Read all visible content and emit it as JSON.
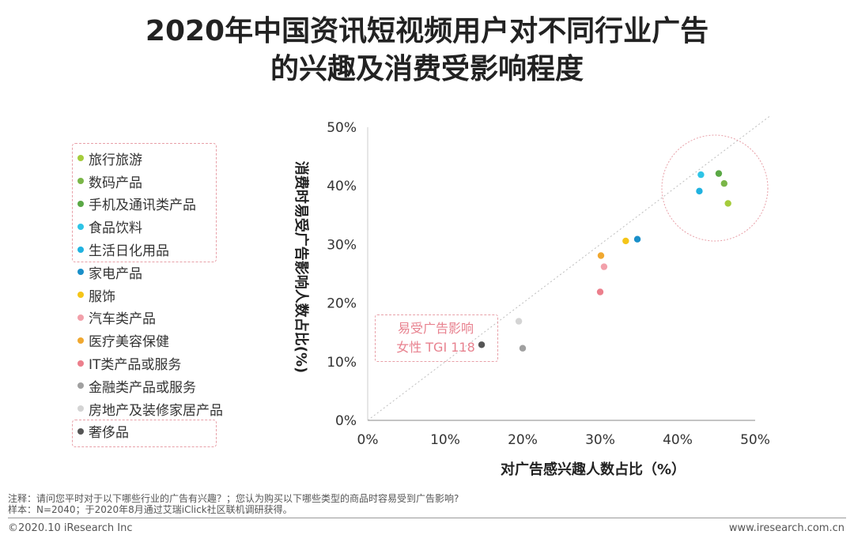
{
  "title": {
    "line1": "2020年中国资讯短视频用户对不同行业广告",
    "line2": "的兴趣及消费受影响程度"
  },
  "annotation": {
    "line1": "易受广告影响",
    "line2": "女性 TGI 118"
  },
  "notes": {
    "line1": "注释：请问您平时对于以下哪些行业的广告有兴趣？；您认为购买以下哪些类型的商品时容易受到广告影响?",
    "line2": "样本：N=2040；于2020年8月通过艾瑞iClick社区联机调研获得。"
  },
  "footer": {
    "left": "©2020.10 iResearch Inc",
    "right": "www.iresearch.com.cn"
  },
  "chart_data": {
    "type": "scatter",
    "xlabel": "对广告感兴趣人数占比（%）",
    "ylabel": "消费时易受广告影响人数占比(%)",
    "xlim": [
      0,
      50
    ],
    "ylim": [
      0,
      50
    ],
    "x_ticks": [
      "0%",
      "10%",
      "20%",
      "30%",
      "40%",
      "50%"
    ],
    "y_ticks": [
      "0%",
      "10%",
      "20%",
      "30%",
      "40%",
      "50%"
    ],
    "reference_line": "y = x (dotted diagonal)",
    "grid": false,
    "legend_position": "left",
    "series": [
      {
        "name": "旅行旅游",
        "color": "#a5cc3c",
        "x": 46.5,
        "y": 37.0
      },
      {
        "name": "数码产品",
        "color": "#7ab648",
        "x": 46.0,
        "y": 40.4
      },
      {
        "name": "手机及通讯类产品",
        "color": "#5aa845",
        "x": 45.3,
        "y": 42.1
      },
      {
        "name": "食品饮料",
        "color": "#2ec4e6",
        "x": 43.0,
        "y": 41.9
      },
      {
        "name": "生活日化用品",
        "color": "#20b2e0",
        "x": 42.8,
        "y": 39.1
      },
      {
        "name": "家电产品",
        "color": "#1a8fc9",
        "x": 34.8,
        "y": 30.9
      },
      {
        "name": "服饰",
        "color": "#f5c518",
        "x": 33.3,
        "y": 30.6
      },
      {
        "name": "汽车类产品",
        "color": "#f2a0aa",
        "x": 30.5,
        "y": 26.2
      },
      {
        "name": "医疗美容保健",
        "color": "#f0a830",
        "x": 30.1,
        "y": 28.1
      },
      {
        "name": "IT类产品或服务",
        "color": "#ec7f8c",
        "x": 30.0,
        "y": 21.9
      },
      {
        "name": "金融类产品或服务",
        "color": "#a0a0a0",
        "x": 20.0,
        "y": 12.3
      },
      {
        "name": "房地产及装修家居产品",
        "color": "#d4d4d4",
        "x": 19.5,
        "y": 16.9
      },
      {
        "name": "奢侈品",
        "color": "#555555",
        "x": 14.7,
        "y": 12.9
      }
    ]
  }
}
